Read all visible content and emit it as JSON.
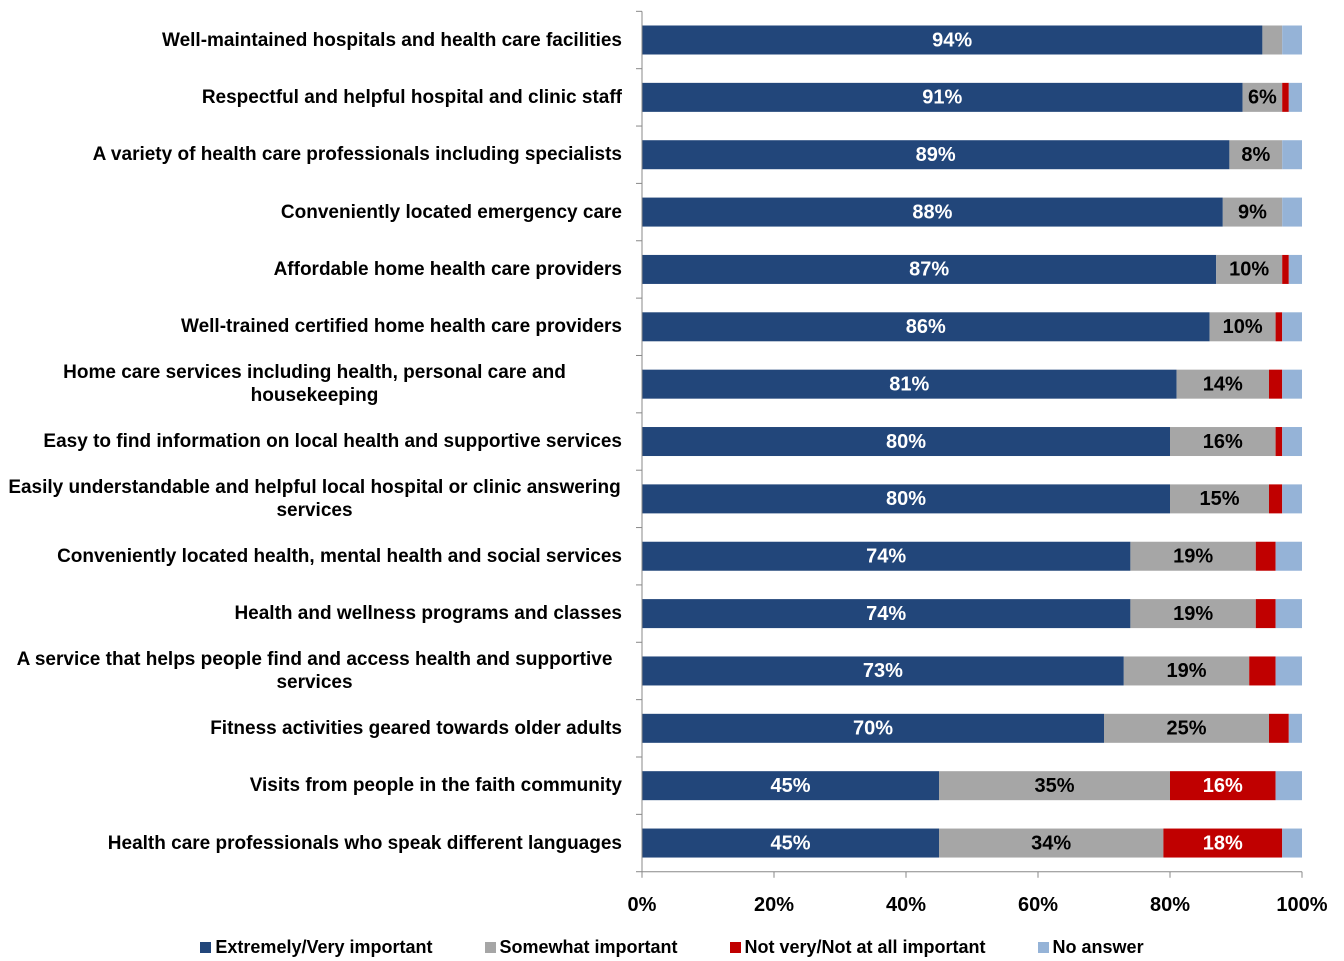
{
  "chart_data": {
    "type": "stacked-bar-horizontal",
    "categories": [
      "Well-maintained hospitals and health care facilities",
      "Respectful and helpful hospital and clinic staff",
      "A variety of health care professionals including specialists",
      "Conveniently located emergency care",
      "Affordable home health care providers",
      "Well-trained certified home health care providers",
      "Home care services including health, personal care and housekeeping",
      "Easy to find information on local health and supportive services",
      "Easily understandable and helpful local hospital or clinic answering services",
      "Conveniently located health, mental health and social services",
      "Health and wellness programs and classes",
      "A service that helps people find and access health and supportive services",
      "Fitness activities geared towards older adults",
      "Visits from people in the faith community",
      "Health care professionals who speak different languages"
    ],
    "series": [
      {
        "name": "Extremely/Very important",
        "color": "#22467a",
        "values": [
          94,
          91,
          89,
          88,
          87,
          86,
          81,
          80,
          80,
          74,
          74,
          73,
          70,
          45,
          45
        ],
        "value_labels": [
          "94%",
          "91%",
          "89%",
          "88%",
          "87%",
          "86%",
          "81%",
          "80%",
          "80%",
          "74%",
          "74%",
          "73%",
          "70%",
          "45%",
          "45%"
        ]
      },
      {
        "name": "Somewhat important",
        "color": "#a6a6a6",
        "values": [
          3,
          6,
          8,
          9,
          10,
          10,
          14,
          16,
          15,
          19,
          19,
          19,
          25,
          35,
          34
        ],
        "value_labels": [
          null,
          "6%",
          "8%",
          "9%",
          "10%",
          "10%",
          "14%",
          "16%",
          "15%",
          "19%",
          "19%",
          "19%",
          "25%",
          "35%",
          "34%"
        ]
      },
      {
        "name": "Not very/Not at all important",
        "color": "#c00000",
        "values": [
          0,
          1,
          0,
          0,
          1,
          1,
          2,
          1,
          2,
          3,
          3,
          4,
          3,
          16,
          18
        ],
        "value_labels": [
          null,
          null,
          null,
          null,
          null,
          null,
          null,
          null,
          null,
          null,
          null,
          null,
          null,
          "16%",
          "18%"
        ]
      },
      {
        "name": "No answer",
        "color": "#95b3d7",
        "values": [
          3,
          2,
          3,
          3,
          2,
          3,
          3,
          3,
          3,
          4,
          4,
          4,
          2,
          4,
          3
        ],
        "value_labels": [
          null,
          null,
          null,
          null,
          null,
          null,
          null,
          null,
          null,
          null,
          null,
          null,
          null,
          null,
          null
        ]
      }
    ],
    "xlim": [
      0,
      100
    ],
    "xticks": [
      {
        "value": 0,
        "label": "0%"
      },
      {
        "value": 20,
        "label": "20%"
      },
      {
        "value": 40,
        "label": "40%"
      },
      {
        "value": 60,
        "label": "60%"
      },
      {
        "value": 80,
        "label": "80%"
      },
      {
        "value": 100,
        "label": "100%"
      }
    ],
    "legend": "bottom"
  }
}
